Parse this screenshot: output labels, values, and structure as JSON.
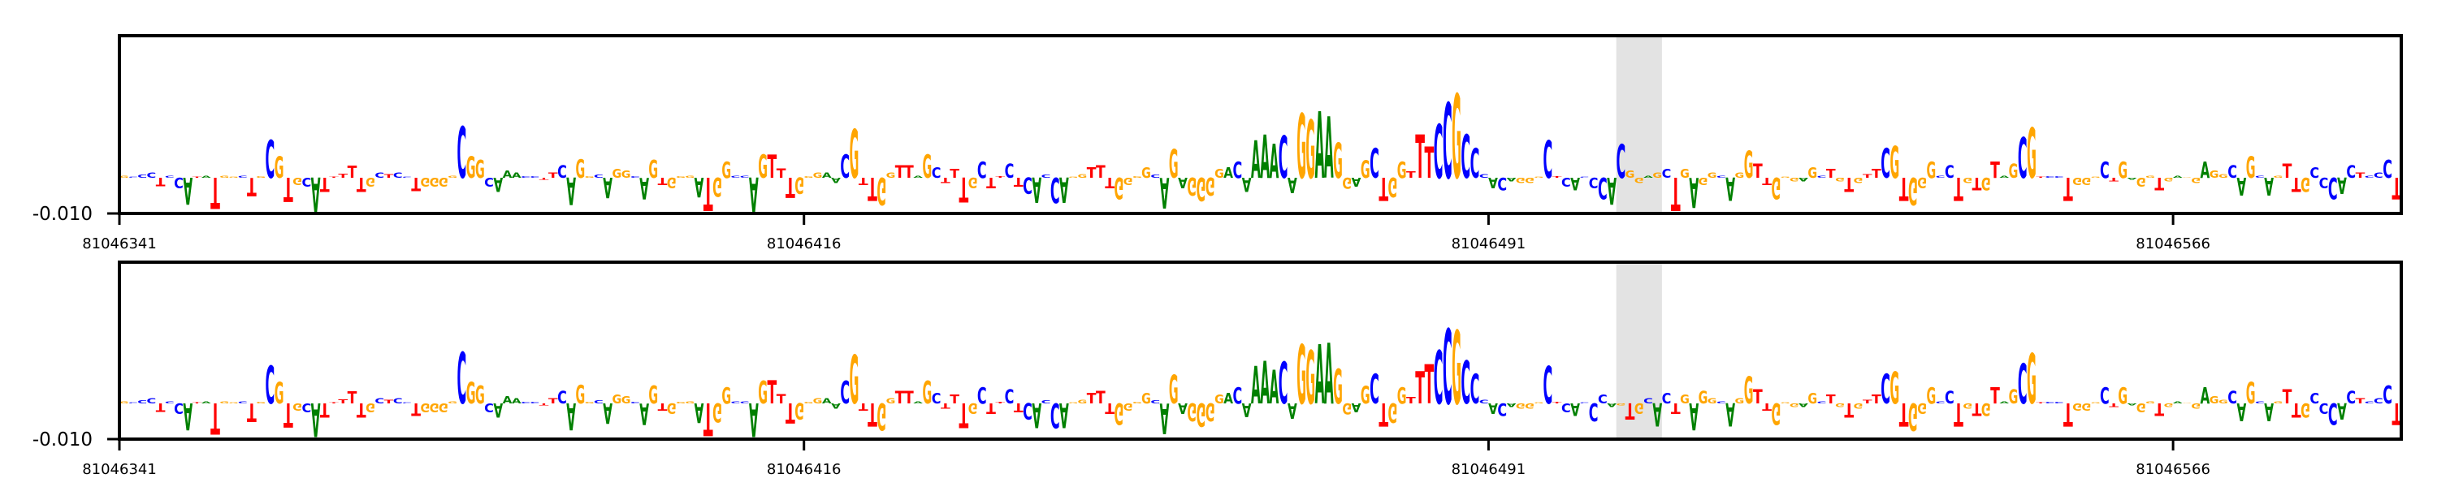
{
  "chart_data": {
    "type": "sequence-logo",
    "title": "",
    "xlabel": "",
    "ylabel": "",
    "ylim": [
      -0.01,
      0.0395
    ],
    "ytick_labels": [
      "-0.010"
    ],
    "ytick_values": [
      -0.01
    ],
    "start_position": 81046341,
    "n_positions": 250,
    "xtick_values": [
      81046341,
      81046416,
      81046491,
      81046566
    ],
    "xtick_labels": [
      "81046341",
      "81046416",
      "81046491",
      "81046566"
    ],
    "highlight": {
      "from": 81046505,
      "to": 81046509,
      "color": "#e3e3e3"
    },
    "colors": {
      "A": "#008000",
      "C": "#0000ff",
      "G": "#ffa500",
      "T": "#ff0000"
    },
    "panels": [
      {
        "name": "top",
        "letters": "GCCCTCCATATGGCTGCGTGCATTTTTGCTCCTGGGGCGGCAAACCTTCAGGCAGGCAGTGGGATGGCCAGTTTGGGAACGTTGGTTAGCTTTGCTTCTCACCAGGTTTGGGGCAGAGGGGACAAAACAGGAAGGAGCTGGTTTCCGCCCACAGGGCTCACCCACGGAGCTGAGGCAGGTTGGGAGCTGTGTTCGTGGGCCTGTGTAGCGTCCTGGGCTGAGGTGAGGAGGCAGCAGTTGCCCACTCCCT",
        "values": [
          0.0006,
          0.0003,
          0.0008,
          0.0015,
          -0.0023,
          0.0005,
          -0.003,
          -0.0075,
          0.0003,
          0.0005,
          -0.0087,
          0.0006,
          0.0003,
          0.0006,
          -0.0052,
          0.0004,
          0.0106,
          0.006,
          -0.0068,
          -0.002,
          -0.0025,
          -0.0095,
          -0.004,
          0.0003,
          0.0012,
          0.0034,
          -0.004,
          -0.0025,
          0.0015,
          0.001,
          0.0015,
          0.0003,
          -0.0036,
          -0.0025,
          -0.0025,
          -0.0025,
          0.0005,
          0.0143,
          0.006,
          0.005,
          -0.0025,
          -0.004,
          0.002,
          0.0015,
          0.0004,
          0.0004,
          -0.0005,
          0.0015,
          0.0035,
          -0.0076,
          0.0052,
          0.0004,
          0.0008,
          -0.0057,
          0.0025,
          0.002,
          0.0004,
          -0.006,
          0.005,
          -0.002,
          -0.003,
          0.0004,
          0.0006,
          -0.0054,
          -0.0092,
          -0.0053,
          0.0045,
          0.0005,
          0.0005,
          -0.0095,
          0.0064,
          0.0065,
          0.0026,
          -0.0056,
          -0.0045,
          0.0004,
          0.0015,
          0.0015,
          -0.0015,
          0.0064,
          0.0136,
          -0.002,
          -0.0065,
          -0.0076,
          0.0015,
          0.0035,
          0.0035,
          0.0006,
          0.0064,
          0.003,
          -0.0015,
          0.0025,
          -0.0069,
          -0.003,
          0.0045,
          -0.003,
          0.0004,
          0.004,
          -0.0025,
          -0.0045,
          -0.007,
          0.0008,
          -0.007,
          -0.007,
          0.0003,
          0.001,
          0.003,
          0.0035,
          -0.003,
          -0.006,
          -0.002,
          0.0004,
          0.003,
          0.0008,
          -0.0085,
          0.0079,
          -0.003,
          -0.005,
          -0.0065,
          -0.005,
          0.0025,
          0.003,
          0.0045,
          -0.0039,
          0.0105,
          0.012,
          0.0095,
          0.0117,
          -0.0042,
          0.018,
          0.0162,
          0.0185,
          0.017,
          0.0098,
          -0.0031,
          -0.0025,
          0.0049,
          0.0083,
          -0.0065,
          -0.0055,
          0.0045,
          0.0017,
          0.012,
          0.0087,
          0.015,
          0.021,
          0.0234,
          0.012,
          0.0083,
          0.001,
          -0.003,
          -0.0035,
          -0.001,
          -0.0015,
          -0.0015,
          0.0003,
          0.0105,
          0.0004,
          -0.0025,
          -0.0035,
          0.0003,
          -0.003,
          -0.006,
          -0.0075,
          0.0094,
          0.002,
          -0.0015,
          0.0005,
          0.0015,
          0.0025,
          -0.0092,
          0.0025,
          -0.0084,
          -0.002,
          0.0015,
          0.0006,
          -0.0065,
          0.0015,
          0.0075,
          0.004,
          -0.002,
          -0.006,
          0.0003,
          -0.001,
          -0.001,
          0.003,
          0.0006,
          0.0025,
          -0.001,
          -0.004,
          -0.0015,
          0.001,
          0.0025,
          0.0083,
          0.009,
          -0.0065,
          -0.0077,
          -0.003,
          0.0045,
          0.0006,
          0.0035,
          -0.0065,
          -0.0015,
          -0.0035,
          -0.0035,
          0.0045,
          0.0006,
          0.004,
          0.0113,
          0.014,
          0.0003,
          0.0004,
          0.0004,
          -0.0065,
          -0.002,
          -0.002,
          0.0003,
          0.0045,
          -0.001,
          0.0045,
          -0.0006,
          -0.0025,
          0.0006,
          -0.0035,
          -0.001,
          0.0006,
          0.0002,
          -0.0015,
          0.0045,
          0.002,
          0.001,
          0.0035,
          -0.005,
          0.006,
          0.0006,
          -0.005,
          0.0006,
          0.004,
          -0.004,
          -0.004,
          0.003,
          -0.003,
          -0.006,
          -0.0045,
          0.0035,
          0.0015,
          0.0006,
          0.0015,
          0.005,
          -0.006
        ]
      },
      {
        "name": "bottom",
        "same_as": "top",
        "overrides": {
          "129": [
            "G",
            0.0165
          ],
          "130": [
            "G",
            0.015
          ],
          "131": [
            "A",
            0.0165
          ],
          "142": [
            "T",
            0.009
          ],
          "143": [
            "T",
            0.011
          ],
          "146": [
            "G",
            0.0205
          ],
          "161": [
            "C",
            -0.005
          ],
          "162": [
            "C",
            0.0025
          ],
          "163": [
            "A",
            -0.001
          ],
          "164": [
            "G",
            -0.0005
          ],
          "165": [
            "T",
            -0.0045
          ],
          "166": [
            "G",
            -0.003
          ],
          "167": [
            "C",
            0.0015
          ],
          "168": [
            "A",
            -0.0065
          ],
          "169": [
            "C",
            0.003
          ],
          "170": [
            "T",
            -0.003
          ],
          "172": [
            "A",
            -0.0075
          ],
          "173": [
            "G",
            0.0035
          ]
        }
      }
    ]
  }
}
